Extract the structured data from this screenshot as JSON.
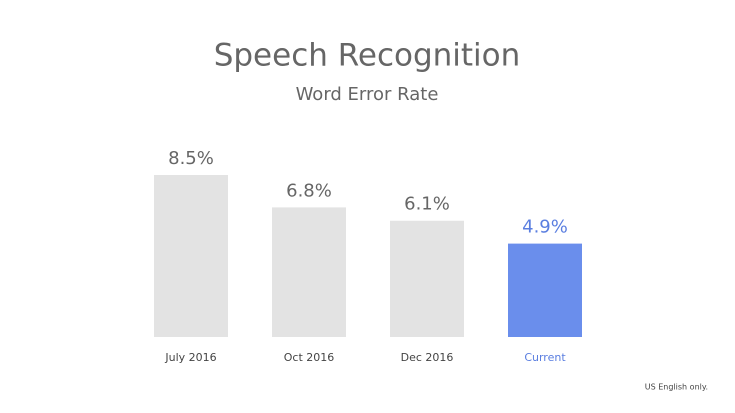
{
  "chart_data": {
    "type": "bar",
    "title": "Speech Recognition",
    "subtitle": "Word Error Rate",
    "categories": [
      "July 2016",
      "Oct 2016",
      "Dec 2016",
      "Current"
    ],
    "values": [
      8.5,
      6.8,
      6.1,
      4.9
    ],
    "value_labels": [
      "8.5%",
      "6.8%",
      "6.1%",
      "4.9%"
    ],
    "colors": [
      "#e3e3e3",
      "#e3e3e3",
      "#e3e3e3",
      "#6a8eec"
    ],
    "label_colors": [
      "#666666",
      "#666666",
      "#666666",
      "#5a7ee0"
    ],
    "footnote": "US English only."
  }
}
